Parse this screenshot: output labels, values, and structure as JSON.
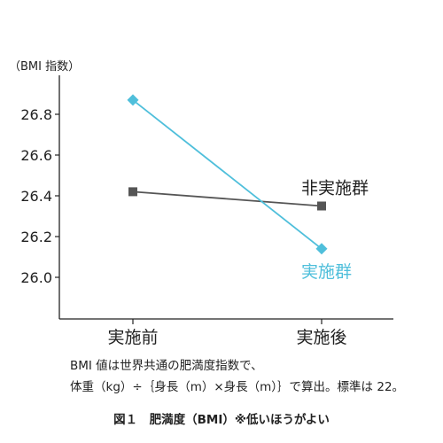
{
  "chart_data": {
    "type": "line",
    "unit_label": "（BMI 指数）",
    "categories": [
      "実施前",
      "実施後"
    ],
    "yticks": [
      26.0,
      26.2,
      26.4,
      26.6,
      26.8
    ],
    "ytick_labels": [
      "26.0",
      "26.2",
      "26.4",
      "26.6",
      "26.8"
    ],
    "ylim": [
      25.8,
      27.0
    ],
    "grid": false,
    "series": [
      {
        "name": "非実施群",
        "values": [
          26.42,
          26.35
        ],
        "color": "#555555",
        "marker": "square"
      },
      {
        "name": "実施群",
        "values": [
          26.87,
          26.14
        ],
        "color": "#4fbfdb",
        "marker": "diamond"
      }
    ]
  },
  "caption": {
    "line1": "BMI 値は世界共通の肥満度指数で、",
    "line2": "体重（kg）÷｛身長（m）×身長（m）｝で算出。標準は 22。",
    "figure_title": "図１　肥満度（BMI）※低いほうがよい"
  }
}
